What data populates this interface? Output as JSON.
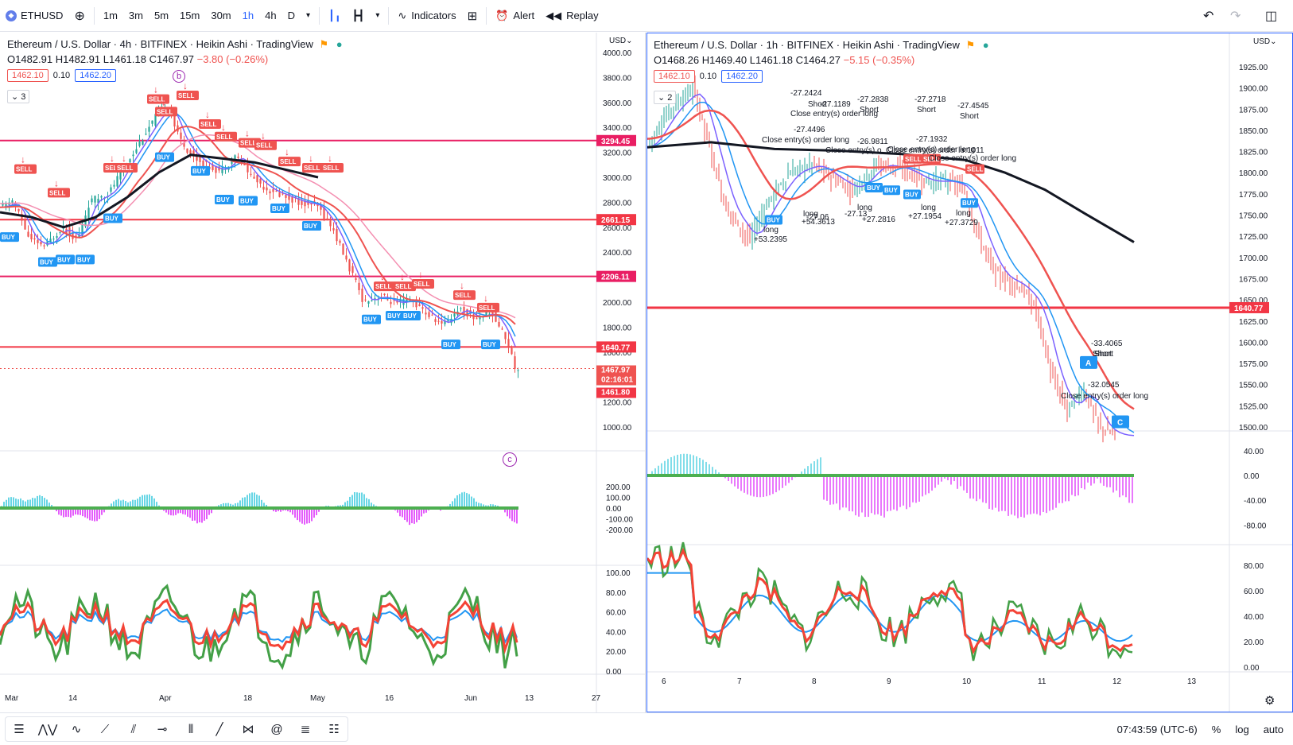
{
  "toolbar": {
    "symbol": "ETHUSD",
    "symbol_icon": "ethereum-icon",
    "intervals": [
      "1m",
      "3m",
      "5m",
      "15m",
      "30m",
      "1h",
      "4h",
      "D"
    ],
    "active_interval": "1h",
    "indicators_label": "Indicators",
    "alert_label": "Alert",
    "replay_label": "Replay"
  },
  "left_chart": {
    "title": "Ethereum / U.S. Dollar · 4h · BITFINEX · Heikin Ashi · TradingView",
    "ohlc": {
      "o": "O1482.91",
      "h": "H1482.91",
      "l": "L1461.18",
      "c": "C1467.97",
      "chg": "−3.80 (−0.26%)"
    },
    "bid": "1462.10",
    "spread": "0.10",
    "ask": "1462.20",
    "collapse": "3",
    "currency": "USD",
    "price_axis": [
      "4000.00",
      "3800.00",
      "3600.00",
      "3400.00",
      "3200.00",
      "3000.00",
      "2800.00",
      "2600.00",
      "2400.00",
      "2200.00",
      "2000.00",
      "1800.00",
      "1600.00",
      "1400.00",
      "1200.00",
      "1000.00"
    ],
    "osc_axis": [
      "200.00",
      "100.00",
      "0.00",
      "-100.00",
      "-200.00"
    ],
    "rsi_axis": [
      "100.00",
      "80.00",
      "60.00",
      "40.00",
      "20.00",
      "0.00"
    ],
    "time_axis": [
      "Mar",
      "14",
      "Apr",
      "18",
      "May",
      "16",
      "Jun",
      "13",
      "27"
    ],
    "levels": [
      "3294.45",
      "2661.15",
      "2206.11",
      "1640.77"
    ],
    "last_price": "1467.97",
    "countdown": "02:16:01",
    "low_price": "1461.80",
    "wave_b": "b",
    "wave_c": "c",
    "sell_label": "SELL",
    "buy_label": "BUY"
  },
  "right_chart": {
    "title": "Ethereum / U.S. Dollar · 1h · BITFINEX · Heikin Ashi · TradingView",
    "ohlc": {
      "o": "O1468.26",
      "h": "H1469.40",
      "l": "L1461.18",
      "c": "C1464.27",
      "chg": "−5.15 (−0.35%)"
    },
    "bid": "1462.10",
    "spread": "0.10",
    "ask": "1462.20",
    "collapse": "2",
    "currency": "USD",
    "price_axis": [
      "1925.00",
      "1900.00",
      "1875.00",
      "1850.00",
      "1825.00",
      "1800.00",
      "1775.00",
      "1750.00",
      "1725.00",
      "1700.00",
      "1675.00",
      "1650.00",
      "1625.00",
      "1600.00",
      "1575.00",
      "1550.00",
      "1525.00",
      "1500.00"
    ],
    "osc_axis": [
      "40.00",
      "0.00",
      "-40.00",
      "-80.00"
    ],
    "rsi_axis": [
      "80.00",
      "60.00",
      "40.00",
      "20.00",
      "0.00"
    ],
    "time_axis": [
      "6",
      "7",
      "8",
      "9",
      "10",
      "11",
      "12",
      "13"
    ],
    "level": "1640.77",
    "annotations": [
      {
        "text": "-27.2424"
      },
      {
        "text": "Short"
      },
      {
        "text": "-27.1189"
      },
      {
        "text": "-27.2838"
      },
      {
        "text": "Short"
      },
      {
        "text": "-27.2718"
      },
      {
        "text": "Short"
      },
      {
        "text": "-27.4545"
      },
      {
        "text": "Short"
      },
      {
        "text": "Close entry(s) order long"
      },
      {
        "text": "-27.4496"
      },
      {
        "text": "Close entry(s) order long"
      },
      {
        "text": "-26.9811"
      },
      {
        "text": "Close entry(s) o"
      },
      {
        "text": "-27.1932"
      },
      {
        "text": "Close entry(s) order long"
      },
      {
        "text": "Close entry(s) order long"
      },
      {
        "text": "Close entry(s) order lo"
      },
      {
        "text": "r:1011"
      },
      {
        "text": "long"
      },
      {
        "text": "+53.2395"
      },
      {
        "text": "long"
      },
      {
        "text": "+54.3613"
      },
      {
        "text": "-27.06"
      },
      {
        "text": "-27.13"
      },
      {
        "text": "long"
      },
      {
        "text": "+27.2816"
      },
      {
        "text": "long"
      },
      {
        "text": "+27.1954"
      },
      {
        "text": "long"
      },
      {
        "text": "+27.3729"
      },
      {
        "text": "-33.4065"
      },
      {
        "text": "Short"
      },
      {
        "text": "-32.0545"
      },
      {
        "text": "Close entry(s) order long"
      },
      {
        "text": "Short"
      }
    ],
    "wave_a": "A",
    "wave_c": "C",
    "buy_label": "BUY",
    "sell_label": "SELL"
  },
  "bottom": {
    "time": "07:43:59 (UTC-6)",
    "percent": "%",
    "log": "log",
    "auto": "auto"
  }
}
